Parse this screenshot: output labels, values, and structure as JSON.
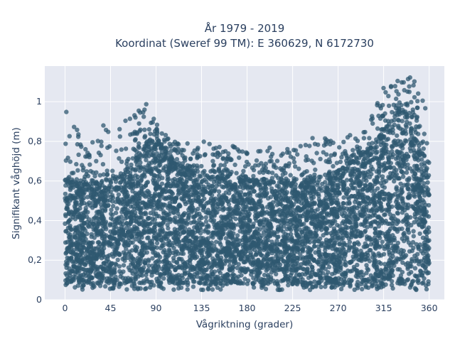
{
  "chart_data": {
    "type": "scatter",
    "title_line1": "År 1979 - 2019",
    "title_line2": "Koordinat (Sweref 99 TM): E 360629, N 6172730",
    "xlabel": "Vågriktning (grader)",
    "ylabel": "Signifikant våghöjd (m)",
    "xlim": [
      -20,
      375
    ],
    "ylim": [
      0,
      1.18
    ],
    "x_ticks": [
      0,
      45,
      90,
      135,
      180,
      225,
      270,
      315,
      360
    ],
    "x_tick_labels": [
      "0",
      "45",
      "90",
      "135",
      "180",
      "225",
      "270",
      "315",
      "360"
    ],
    "y_ticks": [
      0,
      0.2,
      0.4,
      0.6,
      0.8,
      1
    ],
    "y_tick_labels": [
      "0",
      "0,2",
      "0,4",
      "0,6",
      "0,8",
      "1"
    ],
    "grid": true,
    "series": [
      {
        "color": "#2f5870",
        "opacity": 0.75,
        "envelope_direction_deg": [
          0,
          20,
          45,
          65,
          80,
          90,
          105,
          135,
          180,
          225,
          250,
          270,
          300,
          315,
          330,
          345,
          360
        ],
        "envelope_dense_max_m": [
          0.6,
          0.58,
          0.6,
          0.65,
          0.78,
          0.8,
          0.7,
          0.62,
          0.6,
          0.58,
          0.6,
          0.65,
          0.75,
          0.85,
          0.95,
          0.92,
          0.6
        ],
        "envelope_outlier_max_m": [
          0.98,
          0.78,
          0.92,
          0.92,
          1.01,
          0.9,
          0.8,
          0.8,
          0.77,
          0.77,
          0.85,
          0.8,
          0.9,
          1.07,
          1.11,
          1.14,
          0.95
        ],
        "min_m": 0.05,
        "dense_floor_m": 0.08
      }
    ]
  }
}
